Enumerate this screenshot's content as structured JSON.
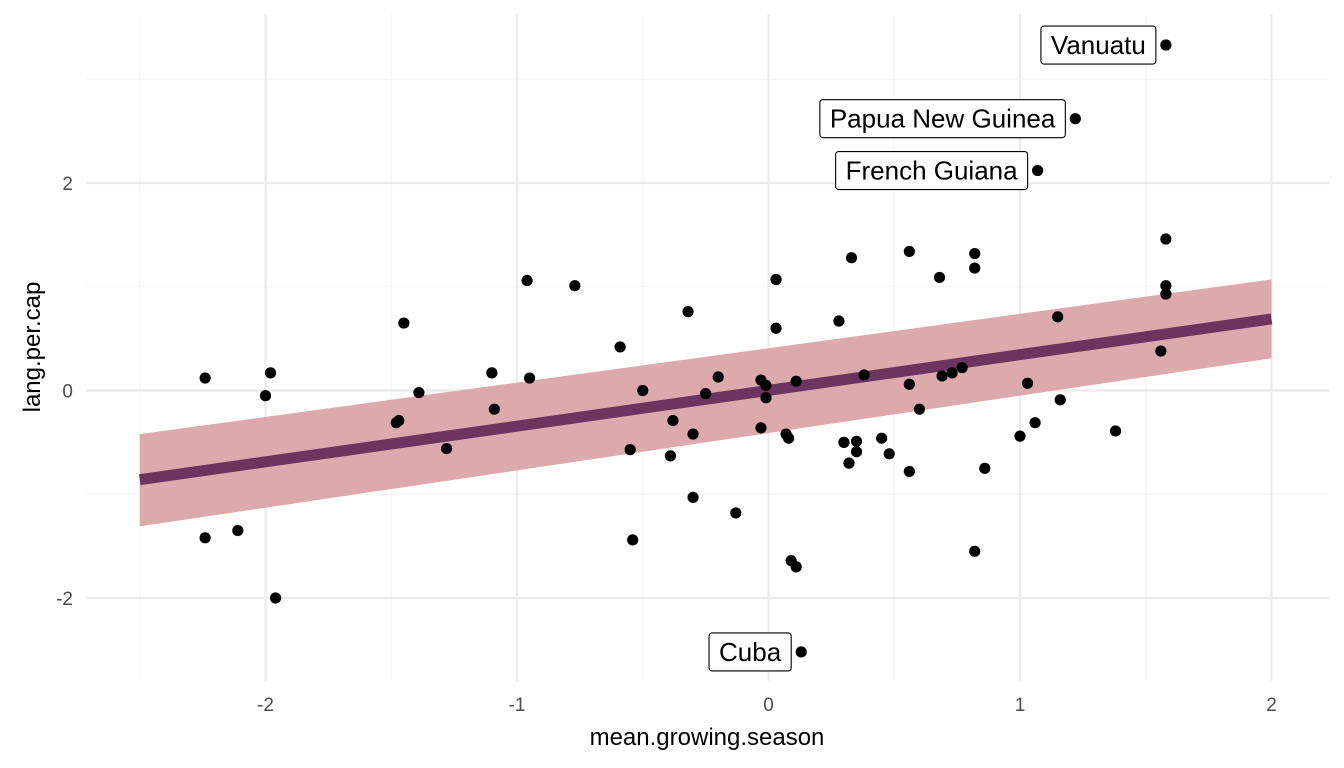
{
  "chart_data": {
    "type": "scatter",
    "xlabel": "mean.growing.season",
    "ylabel": "lang.per.cap",
    "xlim": [
      -2.5,
      2.0
    ],
    "ylim": [
      -2.75,
      3.5
    ],
    "x_ticks": [
      -2,
      -1,
      0,
      1,
      2
    ],
    "y_ticks": [
      -2,
      0,
      2
    ],
    "grid": true,
    "colors": {
      "points": "#000000",
      "fit_line": "#6b3560",
      "ribbon": "#dcaaac",
      "grid_major": "#ebebeb",
      "grid_minor": "#f4f4f4"
    },
    "fit": {
      "x": [
        -2.5,
        2.0
      ],
      "y": [
        -0.86,
        0.69
      ],
      "ci_lower": [
        -1.31,
        0.31
      ],
      "ci_upper": [
        -0.42,
        1.07
      ]
    },
    "points": [
      {
        "x": -2.24,
        "y": 0.12
      },
      {
        "x": -2.24,
        "y": -1.42
      },
      {
        "x": -2.11,
        "y": -1.35
      },
      {
        "x": -2.0,
        "y": -0.05
      },
      {
        "x": -1.98,
        "y": 0.17
      },
      {
        "x": -1.96,
        "y": -2.0
      },
      {
        "x": -1.48,
        "y": -0.31
      },
      {
        "x": -1.47,
        "y": -0.29
      },
      {
        "x": -1.45,
        "y": 0.65
      },
      {
        "x": -1.39,
        "y": -0.02
      },
      {
        "x": -1.28,
        "y": -0.56
      },
      {
        "x": -1.1,
        "y": 0.17
      },
      {
        "x": -1.09,
        "y": -0.18
      },
      {
        "x": -0.96,
        "y": 1.06
      },
      {
        "x": -0.95,
        "y": 0.12
      },
      {
        "x": -0.77,
        "y": 1.01
      },
      {
        "x": -0.59,
        "y": 0.42
      },
      {
        "x": -0.55,
        "y": -0.57
      },
      {
        "x": -0.54,
        "y": -1.44
      },
      {
        "x": -0.5,
        "y": 0.0
      },
      {
        "x": -0.39,
        "y": -0.63
      },
      {
        "x": -0.38,
        "y": -0.29
      },
      {
        "x": -0.32,
        "y": 0.76
      },
      {
        "x": -0.3,
        "y": -1.03
      },
      {
        "x": -0.3,
        "y": -0.42
      },
      {
        "x": -0.25,
        "y": -0.03
      },
      {
        "x": -0.2,
        "y": 0.13
      },
      {
        "x": -0.13,
        "y": -1.18
      },
      {
        "x": -0.03,
        "y": 0.1
      },
      {
        "x": -0.03,
        "y": -0.36
      },
      {
        "x": -0.01,
        "y": -0.07
      },
      {
        "x": -0.01,
        "y": 0.05
      },
      {
        "x": 0.03,
        "y": 1.07
      },
      {
        "x": 0.03,
        "y": 0.6
      },
      {
        "x": 0.07,
        "y": -0.42
      },
      {
        "x": 0.08,
        "y": -0.46
      },
      {
        "x": 0.09,
        "y": -1.64
      },
      {
        "x": 0.11,
        "y": -1.7
      },
      {
        "x": 0.11,
        "y": 0.09
      },
      {
        "x": 0.28,
        "y": 0.67
      },
      {
        "x": 0.3,
        "y": -0.5
      },
      {
        "x": 0.32,
        "y": -0.7
      },
      {
        "x": 0.33,
        "y": 1.28
      },
      {
        "x": 0.35,
        "y": -0.59
      },
      {
        "x": 0.35,
        "y": -0.49
      },
      {
        "x": 0.38,
        "y": 0.15
      },
      {
        "x": 0.45,
        "y": -0.46
      },
      {
        "x": 0.48,
        "y": -0.61
      },
      {
        "x": 0.56,
        "y": 1.34
      },
      {
        "x": 0.56,
        "y": 0.06
      },
      {
        "x": 0.56,
        "y": -0.78
      },
      {
        "x": 0.6,
        "y": -0.18
      },
      {
        "x": 0.68,
        "y": 1.09
      },
      {
        "x": 0.69,
        "y": 0.14
      },
      {
        "x": 0.73,
        "y": 0.17
      },
      {
        "x": 0.77,
        "y": 0.22
      },
      {
        "x": 0.82,
        "y": 1.32
      },
      {
        "x": 0.82,
        "y": 1.18
      },
      {
        "x": 0.82,
        "y": -1.55
      },
      {
        "x": 0.86,
        "y": -0.75
      },
      {
        "x": 1.0,
        "y": -0.44
      },
      {
        "x": 1.03,
        "y": 0.07
      },
      {
        "x": 1.06,
        "y": -0.31
      },
      {
        "x": 1.07,
        "y": 2.12,
        "label": "French Guiana"
      },
      {
        "x": 1.15,
        "y": 0.71
      },
      {
        "x": 1.16,
        "y": -0.09
      },
      {
        "x": 1.22,
        "y": 2.62,
        "label": "Papua New Guinea"
      },
      {
        "x": 1.38,
        "y": -0.39
      },
      {
        "x": 1.56,
        "y": 0.38
      },
      {
        "x": 1.58,
        "y": 3.33,
        "label": "Vanuatu"
      },
      {
        "x": 1.58,
        "y": 1.46
      },
      {
        "x": 1.58,
        "y": 1.01
      },
      {
        "x": 1.58,
        "y": 0.93
      },
      {
        "x": 0.13,
        "y": -2.52,
        "label": "Cuba"
      }
    ]
  }
}
